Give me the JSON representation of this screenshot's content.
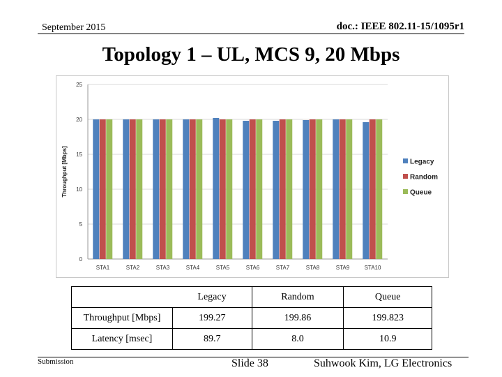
{
  "header": {
    "date": "September 2015",
    "doc": "doc.: IEEE 802.11-15/1095r1"
  },
  "title": "Topology 1 – UL, MCS 9, 20 Mbps",
  "chart_data": {
    "type": "bar",
    "ylabel": "Throughput [Mbps]",
    "xlabel": "",
    "ylim": [
      0,
      25
    ],
    "yticks": [
      0,
      5,
      10,
      15,
      20,
      25
    ],
    "grid": true,
    "legend": "right",
    "categories": [
      "STA1",
      "STA2",
      "STA3",
      "STA4",
      "STA5",
      "STA6",
      "STA7",
      "STA8",
      "STA9",
      "STA10"
    ],
    "series": [
      {
        "name": "Legacy",
        "color": "#4F81BD",
        "values": [
          20.0,
          20.0,
          20.0,
          20.0,
          20.2,
          19.8,
          19.8,
          19.9,
          20.0,
          19.6
        ]
      },
      {
        "name": "Random",
        "color": "#C0504D",
        "values": [
          20.0,
          20.0,
          20.0,
          20.0,
          20.0,
          20.0,
          20.0,
          20.0,
          20.0,
          20.0
        ]
      },
      {
        "name": "Queue",
        "color": "#9BBB59",
        "values": [
          20.0,
          20.0,
          20.0,
          20.0,
          20.0,
          20.0,
          20.0,
          20.0,
          20.0,
          20.0
        ]
      }
    ]
  },
  "table": {
    "columns": [
      "Legacy",
      "Random",
      "Queue"
    ],
    "rows": [
      {
        "label": "Throughput [Mbps]",
        "values": [
          "199.27",
          "199.86",
          "199.823"
        ]
      },
      {
        "label": "Latency [msec]",
        "values": [
          "89.7",
          "8.0",
          "10.9"
        ]
      }
    ]
  },
  "footer": {
    "left": "Submission",
    "center": "Slide 38",
    "right": "Suhwook Kim, LG Electronics"
  }
}
